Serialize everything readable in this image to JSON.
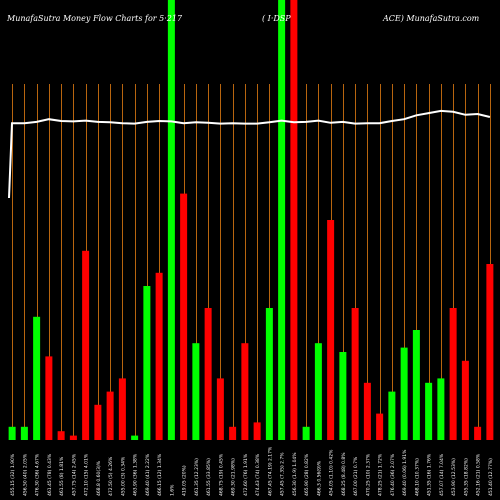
{
  "title": {
    "left": "MunafaSutra  Money Flow  Charts for 5·217",
    "middle": "( I·DSP",
    "right": "ACE) MunafaSutra.com"
  },
  "colors": {
    "background": "#000000",
    "grid": "#b8650f",
    "up": "#00ff00",
    "down": "#ff0000",
    "line": "#ffffff",
    "label": "#ffffff"
  },
  "chart_data": {
    "type": "bar",
    "n_bars": 40,
    "ylim": [
      0,
      100
    ],
    "bars": [
      {
        "color": "green",
        "value": 3
      },
      {
        "color": "green",
        "value": 3
      },
      {
        "color": "green",
        "value": 28
      },
      {
        "color": "red",
        "value": 19
      },
      {
        "color": "red",
        "value": 2
      },
      {
        "color": "red",
        "value": 1
      },
      {
        "color": "red",
        "value": 43
      },
      {
        "color": "red",
        "value": 8
      },
      {
        "color": "red",
        "value": 11
      },
      {
        "color": "red",
        "value": 14
      },
      {
        "color": "green",
        "value": 1
      },
      {
        "color": "green",
        "value": 35
      },
      {
        "color": "red",
        "value": 38
      },
      {
        "color": "green",
        "value": 100
      },
      {
        "color": "red",
        "value": 56
      },
      {
        "color": "green",
        "value": 22
      },
      {
        "color": "red",
        "value": 30
      },
      {
        "color": "red",
        "value": 14
      },
      {
        "color": "red",
        "value": 3
      },
      {
        "color": "red",
        "value": 22
      },
      {
        "color": "red",
        "value": 4
      },
      {
        "color": "green",
        "value": 30
      },
      {
        "color": "green",
        "value": 100
      },
      {
        "color": "red",
        "value": 100
      },
      {
        "color": "green",
        "value": 3
      },
      {
        "color": "green",
        "value": 22
      },
      {
        "color": "red",
        "value": 50
      },
      {
        "color": "green",
        "value": 20
      },
      {
        "color": "red",
        "value": 30
      },
      {
        "color": "red",
        "value": 13
      },
      {
        "color": "red",
        "value": 6
      },
      {
        "color": "green",
        "value": 11
      },
      {
        "color": "green",
        "value": 21
      },
      {
        "color": "green",
        "value": 25
      },
      {
        "color": "green",
        "value": 13
      },
      {
        "color": "green",
        "value": 14
      },
      {
        "color": "red",
        "value": 30
      },
      {
        "color": "red",
        "value": 18
      },
      {
        "color": "red",
        "value": 3
      },
      {
        "color": "red",
        "value": 40
      }
    ],
    "line_values": [
      72,
      72.3,
      72.9,
      72.5,
      72.4,
      72.6,
      72.3,
      72.2,
      72,
      71.9,
      72.3,
      72.5,
      72.4,
      72,
      72.2,
      72.1,
      71.9,
      72.0,
      71.9,
      71.9,
      72.2,
      72.6,
      72.2,
      72.3,
      72.6,
      72.1,
      72.3,
      71.9,
      72.0,
      72.0,
      72.5,
      72.9,
      73.8,
      74.3,
      74.8,
      74.6,
      73.9,
      74.1,
      73.4
    ],
    "line_start": 55,
    "x_labels": [
      "455.15 (32) 1.90%",
      "456.50 (40) 2.05%",
      "476.30 (36) 4.67%",
      "461.45 (78) 0.43%",
      "461.55 (8) 1.81%",
      "457.75 (14) 2.45%",
      "472.10 (15) 4.01%",
      "468.8  0.60(3)%",
      "472.50 (5) 4.26%",
      "455.00 (3) 0.34%",
      "463.90 (36) 1.38%",
      "469.40 (41) 2.22%",
      "466.15 (12) 1.34%",
      "1.6%",
      "419.05 (20%)",
      "461.35 (12.23%)",
      "461.55 (33.85%)",
      "468.75 (19) 0.45%",
      "469.30 (21.98%)",
      "472.60 (76) 1.91%",
      "474.43 (74) 0.38%",
      "467.45 (74.19) 2.17%",
      "457.45 (7.35) 2.7%",
      "456.30 (1.9) 1.04%",
      "465.90 (28) 0.82%",
      "466.3  0.56(9)%",
      "454.05 (1.10) 0.42%",
      "468.25 (8.48) 0.8%",
      "467.00 (21) 0.7%",
      "470.25 (10) 2.37%",
      "478.25 (21) 1.72%",
      "476.40 (36) 2.07%",
      "469.40 (0.06) 1.91%",
      "468.10 (10.37%)",
      "451.35 (16) 1.76%",
      "457.07 (14) 7.04%",
      "453.90 (12.53%)",
      "455.35 (18.82%)",
      "452.16 (21) 0.58%",
      "451.40 (12.77%)"
    ]
  }
}
